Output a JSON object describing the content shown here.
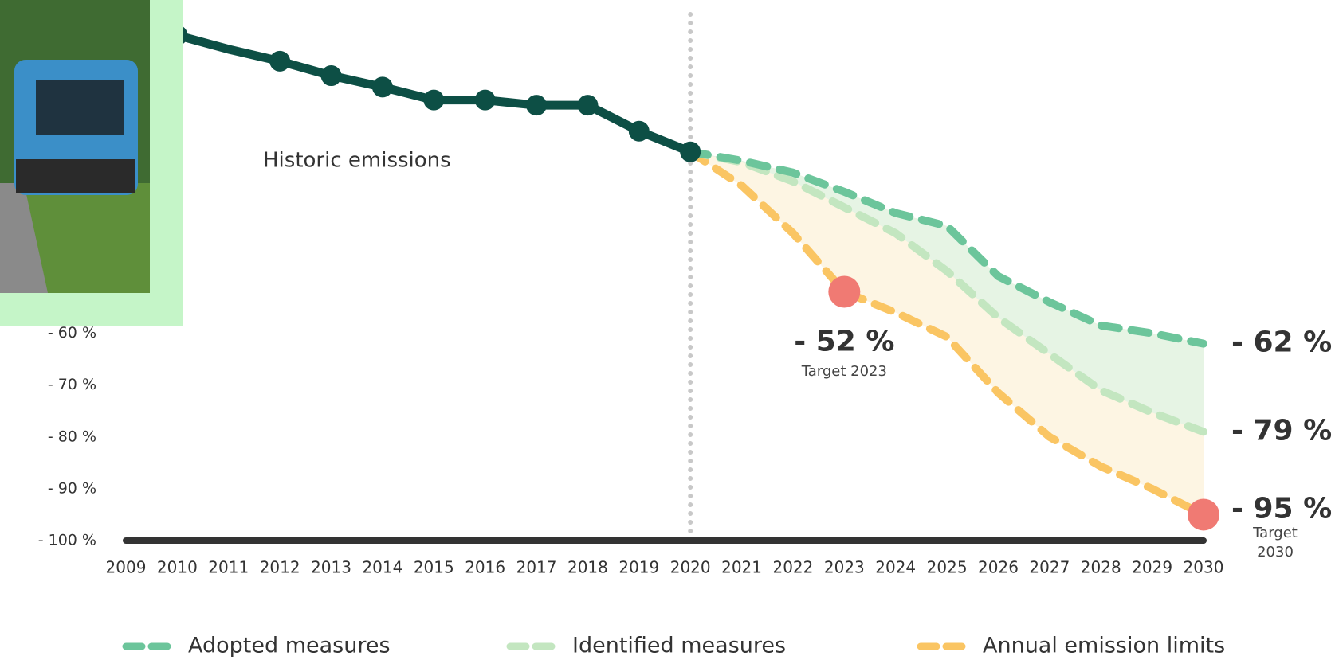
{
  "chart_data": {
    "type": "line",
    "xlim": [
      2009,
      2030
    ],
    "xticks": [
      2009,
      2010,
      2011,
      2012,
      2013,
      2014,
      2015,
      2016,
      2017,
      2018,
      2019,
      2020,
      2021,
      2022,
      2023,
      2024,
      2025,
      2026,
      2027,
      2028,
      2029,
      2030
    ],
    "ylim": [
      -100,
      0
    ],
    "yticks": [
      {
        "value": -60,
        "label": "- 60 %"
      },
      {
        "value": -70,
        "label": "- 70 %"
      },
      {
        "value": -80,
        "label": "- 80 %"
      },
      {
        "value": -90,
        "label": "- 90 %"
      },
      {
        "value": -100,
        "label": "- 100 %"
      }
    ],
    "historic": {
      "name": "Historic emissions",
      "color": "#0d4f45",
      "x": [
        2009,
        2010,
        2011,
        2012,
        2013,
        2014,
        2015,
        2016,
        2017,
        2018,
        2019,
        2020
      ],
      "values": [
        0,
        -2.5,
        -5.2,
        -7.5,
        -10.3,
        -12.5,
        -15,
        -15,
        -16,
        -16,
        -21,
        -25
      ]
    },
    "divider_x": 2020,
    "series": [
      {
        "name": "Adopted measures",
        "color": "#6cc59b",
        "x": [
          2020,
          2021,
          2022,
          2023,
          2024,
          2025,
          2026,
          2027,
          2028,
          2029,
          2030
        ],
        "values": [
          -25,
          -26.7,
          -29,
          -32.7,
          -36.8,
          -39.3,
          -49,
          -54,
          -58.5,
          -60,
          -62
        ]
      },
      {
        "name": "Identified measures",
        "color": "#c3e6c0",
        "x": [
          2020,
          2021,
          2022,
          2023,
          2024,
          2025,
          2026,
          2027,
          2028,
          2029,
          2030
        ],
        "values": [
          -25,
          -27,
          -30.7,
          -35.7,
          -40.7,
          -48,
          -57,
          -64,
          -71,
          -75.3,
          -79
        ]
      },
      {
        "name": "Annual emission limits",
        "color": "#fac563",
        "x": [
          2020,
          2021,
          2022,
          2023,
          2024,
          2025,
          2026,
          2027,
          2028,
          2029,
          2030
        ],
        "values": [
          -25,
          -31.5,
          -40.7,
          -52,
          -56,
          -60.7,
          -71.5,
          -80,
          -85.7,
          -90,
          -95
        ]
      }
    ],
    "end_labels": [
      {
        "value": -62,
        "label": "- 62 %"
      },
      {
        "value": -79,
        "label": "- 79 %"
      }
    ],
    "targets": {
      "color": "#f07a73",
      "x": [
        2023,
        2030
      ],
      "values": [
        -52,
        -95
      ],
      "value_labels": [
        "- 52 %",
        "- 95 %"
      ],
      "captions": [
        "Target 2023",
        "Target 2030"
      ]
    }
  }
}
